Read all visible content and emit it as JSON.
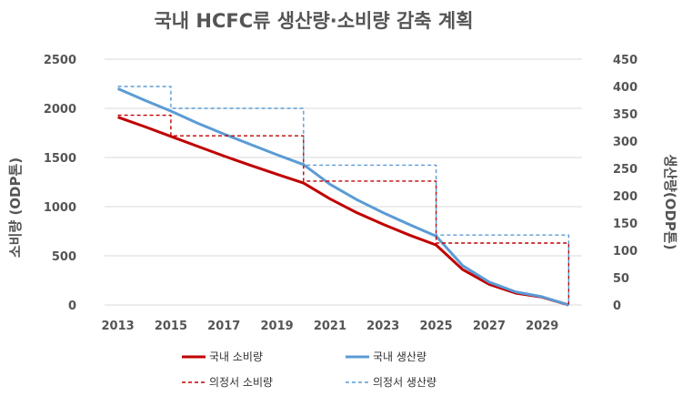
{
  "chart_data": {
    "type": "line",
    "title": "국내 HCFC류 생산량·소비량 감축 계획",
    "x": [
      2013,
      2014,
      2015,
      2016,
      2017,
      2018,
      2019,
      2020,
      2021,
      2022,
      2023,
      2024,
      2025,
      2026,
      2027,
      2028,
      2029,
      2030
    ],
    "xticks": [
      "2013",
      "2015",
      "2017",
      "2019",
      "2021",
      "2023",
      "2025",
      "2027",
      "2029"
    ],
    "xlim": [
      2012.5,
      2030.5
    ],
    "y_left": {
      "label": "소비량 (ODP톤)",
      "ylim": [
        0,
        2500
      ],
      "ticks": [
        "0",
        "500",
        "1000",
        "1500",
        "2000",
        "2500"
      ]
    },
    "y_right": {
      "label": "생산량(ODP톤)",
      "ylim": [
        0,
        450
      ],
      "ticks": [
        "0",
        "50",
        "100",
        "150",
        "200",
        "250",
        "300",
        "350",
        "400",
        "450"
      ]
    },
    "grid": true,
    "legend_position": "bottom",
    "series": [
      {
        "name": "국내 소비량",
        "axis": "left",
        "color": "#c00000",
        "style": "solid",
        "values": [
          1910,
          1815,
          1715,
          1615,
          1515,
          1420,
          1330,
          1240,
          1080,
          940,
          820,
          710,
          610,
          360,
          210,
          120,
          80,
          0
        ]
      },
      {
        "name": "국내 생산량",
        "axis": "right",
        "color": "#5b9bd5",
        "style": "solid",
        "values": [
          396,
          375,
          355,
          333,
          313,
          294,
          275,
          257,
          221,
          193,
          169,
          147,
          126,
          72,
          42,
          24,
          15,
          0
        ]
      },
      {
        "name": "의정서 소비량",
        "axis": "left",
        "color": "#c00000",
        "style": "dashed",
        "step": true,
        "points": [
          [
            2013,
            1930
          ],
          [
            2015,
            1930
          ],
          [
            2015,
            1720
          ],
          [
            2020,
            1720
          ],
          [
            2020,
            1260
          ],
          [
            2025,
            1260
          ],
          [
            2025,
            630
          ],
          [
            2030,
            630
          ],
          [
            2030,
            0
          ]
        ]
      },
      {
        "name": "의정서 생산량",
        "axis": "right",
        "color": "#5b9bd5",
        "style": "dashed",
        "step": true,
        "points": [
          [
            2013,
            400
          ],
          [
            2015,
            400
          ],
          [
            2015,
            360
          ],
          [
            2020,
            360
          ],
          [
            2020,
            256
          ],
          [
            2025,
            256
          ],
          [
            2025,
            128
          ],
          [
            2030,
            128
          ],
          [
            2030,
            0
          ]
        ]
      }
    ]
  }
}
